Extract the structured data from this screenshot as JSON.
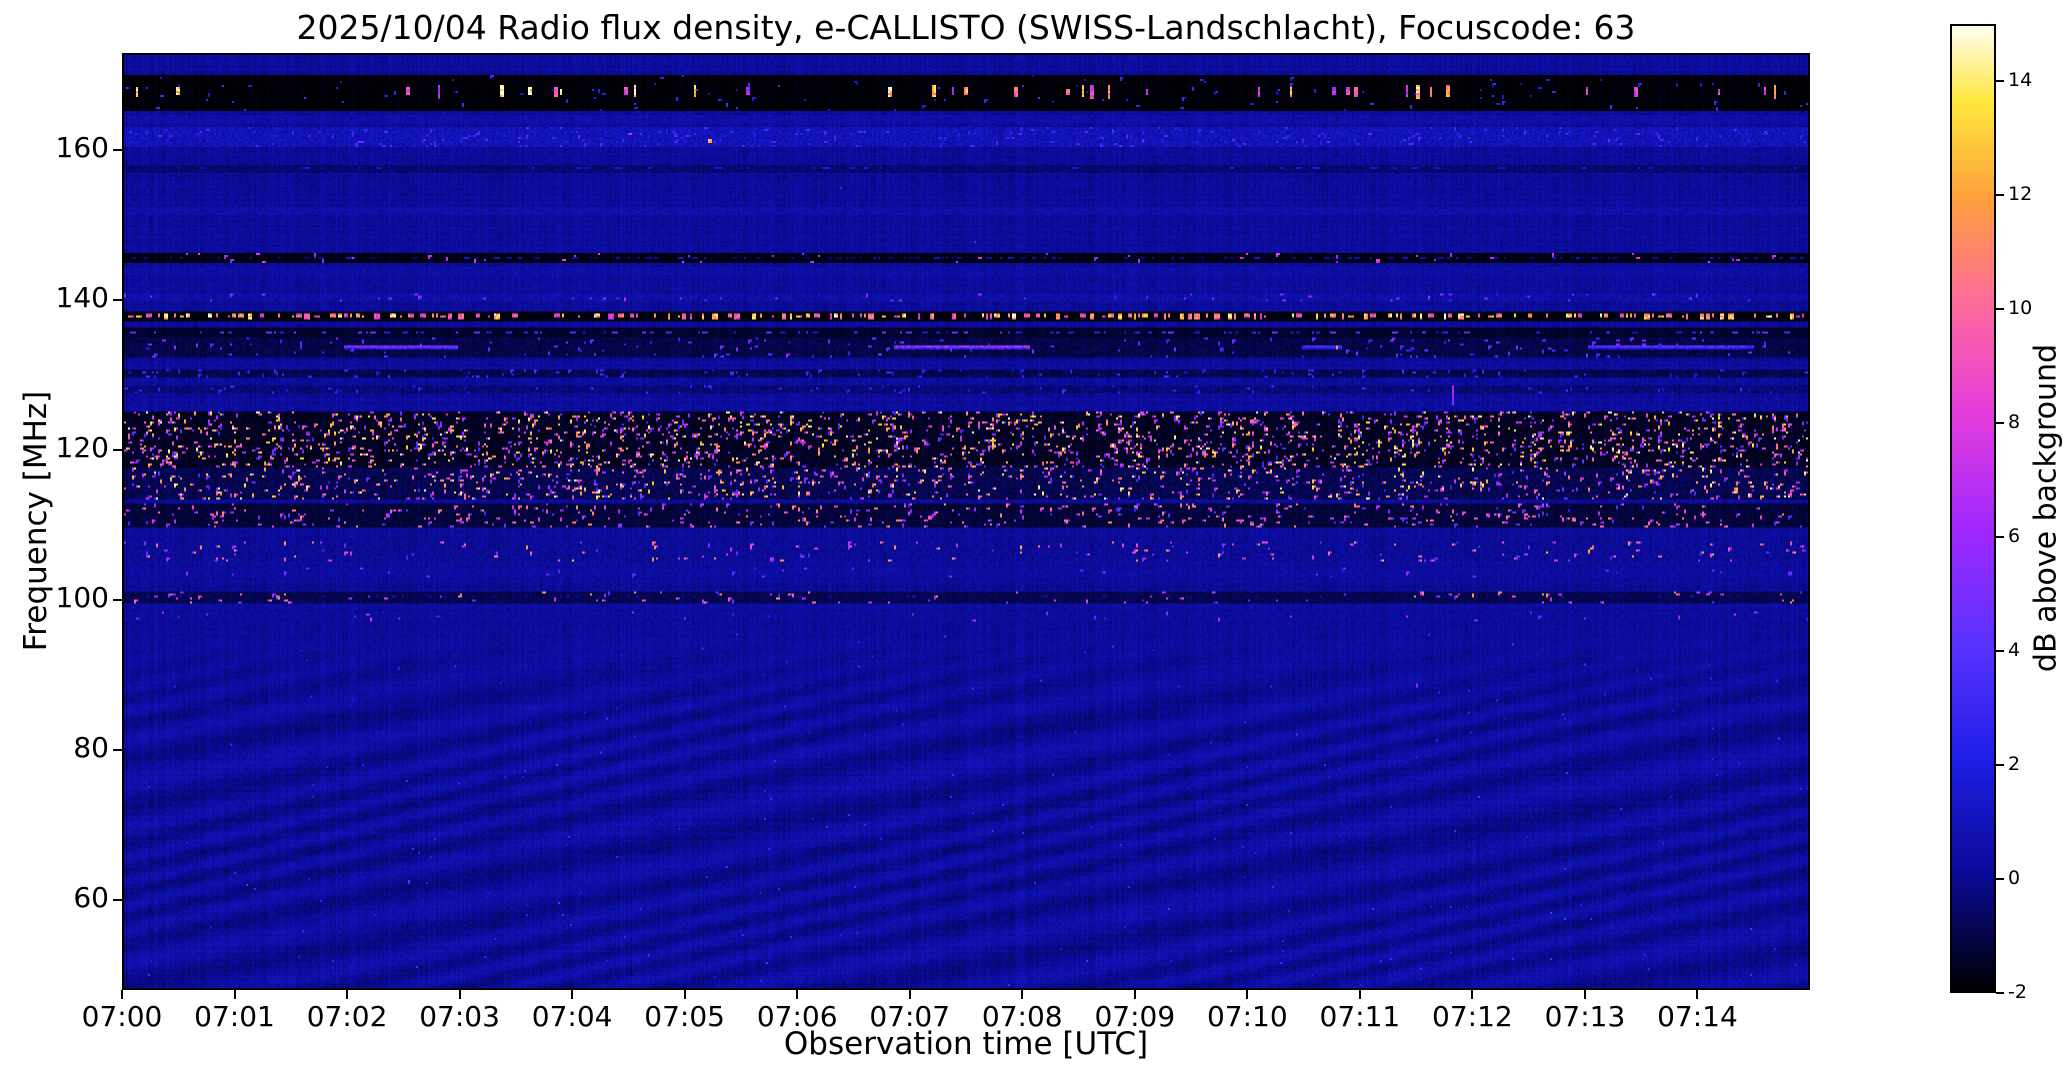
{
  "chart_data": {
    "type": "heatmap",
    "title": "2025/10/04  Radio flux density, e-CALLISTO (SWISS-Landschlacht), Focuscode: 63",
    "xlabel": "Observation time [UTC]",
    "ylabel": "Frequency [MHz]",
    "x_ticks": [
      "07:00",
      "07:01",
      "07:02",
      "07:03",
      "07:04",
      "07:05",
      "07:06",
      "07:07",
      "07:08",
      "07:09",
      "07:10",
      "07:11",
      "07:12",
      "07:13",
      "07:14"
    ],
    "y_ticks": [
      160,
      140,
      120,
      100,
      80,
      60
    ],
    "xlim": [
      "07:00",
      "07:15"
    ],
    "ylim": [
      48,
      173
    ],
    "clim": [
      -2,
      15
    ],
    "grid": false,
    "colorbar": {
      "label": "dB above background",
      "ticks": [
        -2,
        0,
        2,
        4,
        6,
        8,
        10,
        12,
        14
      ],
      "position": "right"
    },
    "colormap": {
      "name": "black-blue-magenta-orange-yellow-white",
      "stops": [
        [
          0.0,
          "#000000"
        ],
        [
          0.12,
          "#0a0a96"
        ],
        [
          0.24,
          "#1e1ee6"
        ],
        [
          0.36,
          "#5a32ff"
        ],
        [
          0.48,
          "#a028ff"
        ],
        [
          0.6,
          "#e63cdc"
        ],
        [
          0.72,
          "#ff6e96"
        ],
        [
          0.82,
          "#ffa03c"
        ],
        [
          0.92,
          "#ffe63c"
        ],
        [
          1.0,
          "#fffff0"
        ]
      ]
    },
    "background": {
      "base": 0.18,
      "noise": 0.5,
      "ripple_amp": 0.4,
      "description": "quiet deep-blue background ~0 dB with faint wavy interference ripples below ~96 MHz"
    },
    "rfi_bands": [
      {
        "f": 167.8,
        "hw": 2.3,
        "base": -1.9,
        "noise": 0.15,
        "dash": {
          "p": 0.05,
          "len": 2,
          "db": [
            6,
            15
          ],
          "rows": 5
        },
        "speckle": {
          "p": 0.008,
          "db": [
            1,
            4
          ]
        }
      },
      {
        "f": 164.3,
        "hw": 0.4,
        "base": 0.5,
        "noise": 0.3
      },
      {
        "f": 161.9,
        "hw": 1.3,
        "base": 0.9,
        "noise": 0.5,
        "speckle": {
          "p": 0.03,
          "db": [
            1.5,
            4
          ]
        }
      },
      {
        "f": 157.6,
        "hw": 0.4,
        "base": -0.5,
        "noise": 0.3,
        "dash": {
          "p": 0.05,
          "len": 4,
          "db": [
            0.5,
            2
          ],
          "rows": 1
        }
      },
      {
        "f": 152.0,
        "hw": 0.35,
        "base": 0.5,
        "noise": 0.3
      },
      {
        "f": 145.8,
        "hw": 0.55,
        "base": -1.7,
        "noise": 0.15,
        "dash": {
          "p": 0.18,
          "len": 3,
          "db": [
            -0.8,
            1.2
          ],
          "rows": 1
        },
        "speckle": {
          "p": 0.012,
          "db": [
            5,
            9
          ]
        }
      },
      {
        "f": 144.0,
        "hw": 0.35,
        "base": 0.4,
        "noise": 0.3
      },
      {
        "f": 140.5,
        "hw": 0.45,
        "base": 0.5,
        "noise": 0.4,
        "speckle": {
          "p": 0.02,
          "db": [
            2,
            7
          ]
        }
      },
      {
        "f": 138.0,
        "hw": 0.65,
        "base": -1.8,
        "noise": 0.1,
        "dash": {
          "p": 0.32,
          "len": 3,
          "db": [
            8,
            14
          ],
          "rows": 2
        }
      },
      {
        "f": 135.9,
        "hw": 0.5,
        "base": -1.4,
        "noise": 0.2,
        "dash": {
          "p": 0.15,
          "len": 3,
          "db": [
            1,
            5
          ],
          "rows": 1
        }
      },
      {
        "f": 133.8,
        "hw": 1.2,
        "base": -1.0,
        "noise": 0.3,
        "speckle": {
          "p": 0.02,
          "db": [
            2,
            6
          ]
        },
        "streaks": [
          {
            "t0": 0.131,
            "t1": 0.199,
            "db": 5.5
          },
          {
            "t0": 0.457,
            "t1": 0.538,
            "db": 6.5
          },
          {
            "t0": 0.699,
            "t1": 0.723,
            "db": 4.0
          },
          {
            "t0": 0.868,
            "t1": 0.967,
            "db": 4.5
          }
        ]
      },
      {
        "f": 130.3,
        "hw": 0.4,
        "base": -0.9,
        "noise": 0.3,
        "speckle": {
          "p": 0.03,
          "db": [
            1,
            4
          ]
        }
      },
      {
        "f": 128.2,
        "hw": 0.45,
        "base": -0.4,
        "noise": 0.4,
        "speckle": {
          "p": 0.02,
          "db": [
            1,
            4
          ]
        }
      },
      {
        "f": 121.4,
        "hw": 3.7,
        "base": -1.5,
        "noise": 0.35,
        "speckle": {
          "p": 0.085,
          "db": [
            3,
            15
          ]
        }
      },
      {
        "f": 115.6,
        "hw": 2.0,
        "base": -0.9,
        "noise": 0.4,
        "speckle": {
          "p": 0.06,
          "db": [
            3,
            15
          ]
        }
      },
      {
        "f": 111.4,
        "hw": 1.5,
        "base": -1.2,
        "noise": 0.3,
        "speckle": {
          "p": 0.045,
          "db": [
            3,
            12
          ]
        }
      },
      {
        "f": 106.6,
        "hw": 1.1,
        "base": 0.1,
        "noise": 0.4,
        "speckle": {
          "p": 0.02,
          "db": [
            3,
            13
          ]
        }
      },
      {
        "f": 103.9,
        "hw": 0.5,
        "base": 0.3,
        "noise": 0.3,
        "speckle": {
          "p": 0.008,
          "db": [
            2,
            6
          ]
        }
      },
      {
        "f": 100.4,
        "hw": 0.7,
        "base": -0.9,
        "noise": 0.25,
        "dash": {
          "p": 0.06,
          "len": 2,
          "db": [
            -0.2,
            1
          ],
          "rows": 1
        },
        "speckle": {
          "p": 0.02,
          "db": [
            3,
            12
          ]
        }
      },
      {
        "f": 98.0,
        "hw": 0.5,
        "base": 0.2,
        "noise": 0.3,
        "speckle": {
          "p": 0.008,
          "db": [
            2,
            8
          ]
        }
      }
    ],
    "spots": [
      {
        "t": 0.347,
        "f": 161.6,
        "db": 13,
        "w": 2,
        "h": 2
      },
      {
        "t": 0.3,
        "f": 162.4,
        "db": 7,
        "w": 2,
        "h": 1
      },
      {
        "t": 0.14,
        "f": 161.2,
        "db": 5,
        "w": 3,
        "h": 1
      },
      {
        "t": 0.169,
        "f": 62.7,
        "db": 4,
        "w": 1,
        "h": 2
      },
      {
        "t": 0.766,
        "f": 88.8,
        "db": 5.5,
        "w": 1,
        "h": 2
      },
      {
        "t": 0.788,
        "f": 128.6,
        "db": 6,
        "w": 1,
        "h": 10
      },
      {
        "t": 0.719,
        "f": 133.9,
        "db": 12,
        "w": 1,
        "h": 2
      },
      {
        "t": 0.505,
        "f": 148.0,
        "db": 3.5,
        "w": 1,
        "h": 1
      },
      {
        "t": 0.425,
        "f": 155.0,
        "db": 3,
        "w": 1,
        "h": 1
      }
    ]
  }
}
